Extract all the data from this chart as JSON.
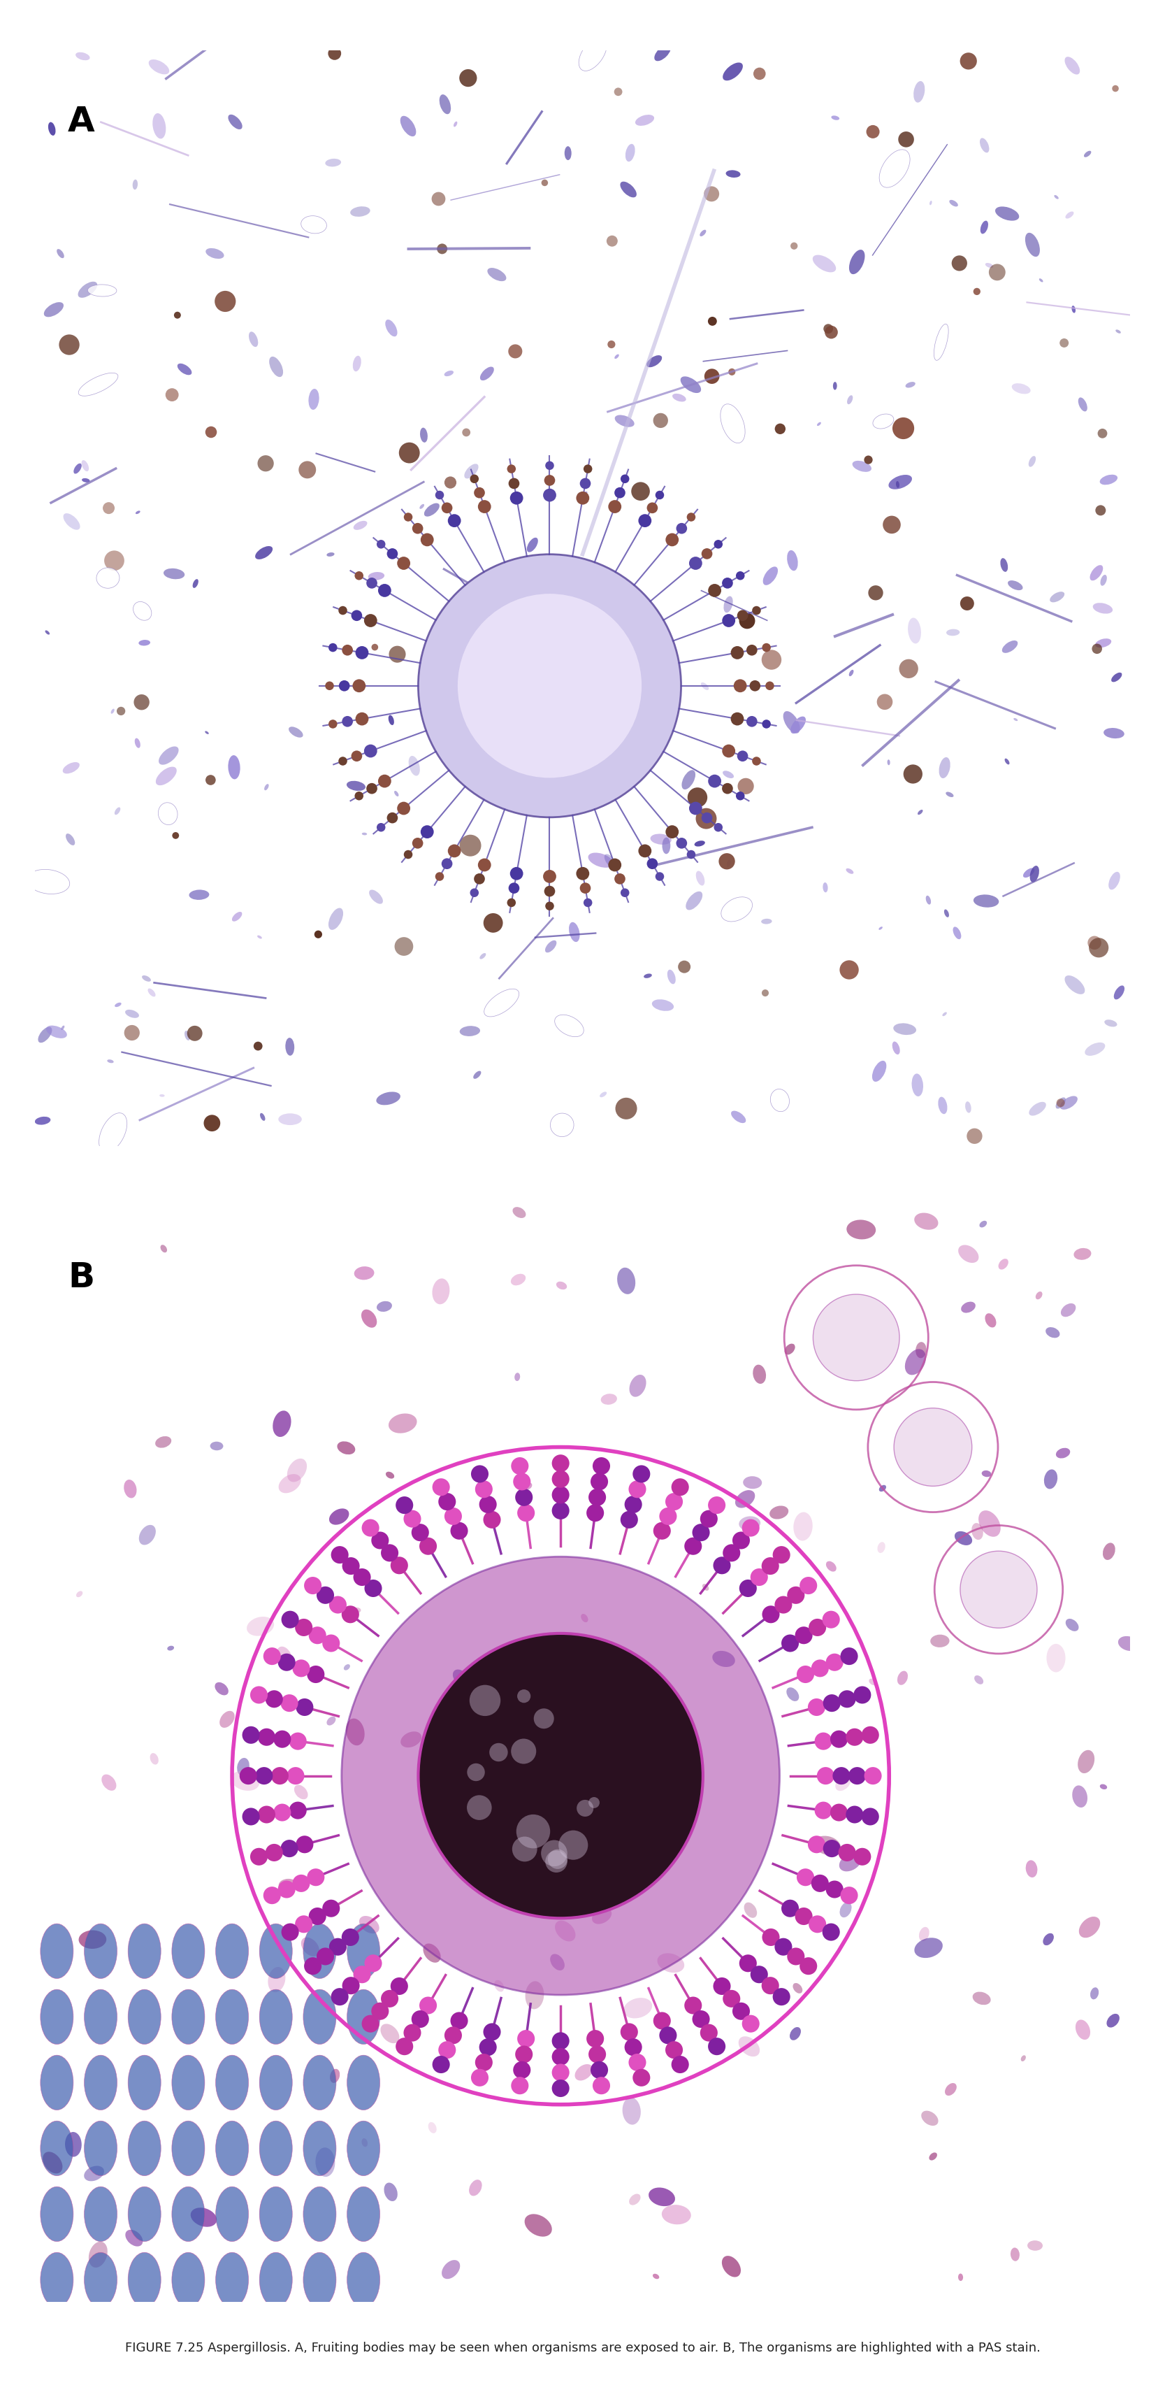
{
  "figure_label": "FIGURE 7.25",
  "figure_title": "Aspergillosis.",
  "panel_A_label": "A",
  "panel_B_label": "B",
  "caption_A": "Fruiting bodies may be seen when organisms are exposed to air.",
  "caption_B": "The organisms are highlighted with a PAS stain.",
  "bg_color": "#ffffff",
  "label_color": "#000000",
  "fig_width": 16.67,
  "fig_height": 34.08,
  "panel_A_bg": "#e8e0f0",
  "panel_B_bg": "#f0e8f0",
  "border_color": "#cccccc",
  "panel_A_center_color": "#c8b8e8",
  "panel_A_outer_color": "#7060a0",
  "panel_B_center_color": "#2a1a3a",
  "panel_B_ring_color": "#9050a0",
  "panel_B_outer_color": "#8060b0",
  "panel_B_spike_color": "#c030a0",
  "panel_B_border_color": "#d040c0"
}
